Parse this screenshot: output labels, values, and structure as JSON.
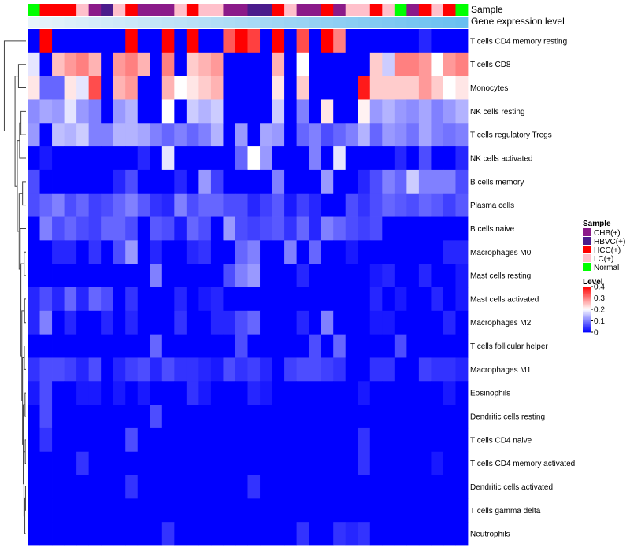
{
  "chart_data": {
    "type": "heatmap",
    "title": "",
    "annotation_labels": [
      "Sample",
      "Gene expression level"
    ],
    "row_labels": [
      "T cells CD4 memory resting",
      "T cells CD8",
      "Monocytes",
      "NK cells resting",
      "T cells regulatory  Tregs",
      "NK cells activated",
      "B cells memory",
      "Plasma cells",
      "B cells naive",
      "Macrophages M0",
      "Mast cells resting",
      "Mast cells activated",
      "Macrophages M2",
      "T cells follicular helper",
      "Macrophages M1",
      "Eosinophils",
      "Dendritic cells resting",
      "T cells CD4 naive",
      "T cells CD4 memory activated",
      "Dendritic cells activated",
      "T cells gamma delta",
      "Neutrophils"
    ],
    "sample_groups": [
      "Normal",
      "HCC(+)",
      "HCC(+)",
      "HCC(+)",
      "LC(+)",
      "CHB(+)",
      "HBVC(+)",
      "LC(+)",
      "HCC(+)",
      "CHB(+)",
      "CHB(+)",
      "CHB(+)",
      "LC(+)",
      "HCC(+)",
      "LC(+)",
      "LC(+)",
      "CHB(+)",
      "CHB(+)",
      "HBVC(+)",
      "HBVC(+)",
      "HCC(+)",
      "LC(+)",
      "CHB(+)",
      "CHB(+)",
      "HCC(+)",
      "CHB(+)",
      "LC(+)",
      "LC(+)",
      "HCC(+)",
      "LC(+)",
      "Normal",
      "CHB(+)",
      "HCC(+)",
      "LC(+)",
      "HCC(+)",
      "Normal"
    ],
    "expression_level_range": [
      0,
      1
    ],
    "legend_sample": {
      "title": "Sample",
      "entries": [
        {
          "name": "CHB(+)",
          "color": "#8B1A89"
        },
        {
          "name": "HBVC(+)",
          "color": "#4B1C8C"
        },
        {
          "name": "HCC(+)",
          "color": "#FF0000"
        },
        {
          "name": "LC(+)",
          "color": "#FFC0CB"
        },
        {
          "name": "Normal",
          "color": "#00FF00"
        }
      ]
    },
    "legend_level": {
      "title": "Level",
      "ticks": [
        0.4,
        0.3,
        0.2,
        0.1,
        0
      ],
      "range": [
        0,
        0.4
      ],
      "colors": [
        "#0000FF",
        "#FFFFFF",
        "#FF0000"
      ]
    },
    "values": [
      [
        0.0,
        0.4,
        0.0,
        0.0,
        0.0,
        0.0,
        0.0,
        0.0,
        0.4,
        0.0,
        0.0,
        0.4,
        0.0,
        0.4,
        0.0,
        0.0,
        0.33,
        0.4,
        0.35,
        0.0,
        0.4,
        0.0,
        0.34,
        0.0,
        0.4,
        0.3,
        0.0,
        0.0,
        0.0,
        0.0,
        0.0,
        0.0,
        0.03,
        0.0,
        0.0,
        0.0
      ],
      [
        0.18,
        0.0,
        0.25,
        0.28,
        0.3,
        0.26,
        0.0,
        0.28,
        0.3,
        0.26,
        0.0,
        0.3,
        0.0,
        0.24,
        0.26,
        0.28,
        0.0,
        0.0,
        0.0,
        0.0,
        0.26,
        0.0,
        0.2,
        0.0,
        0.0,
        0.0,
        0.0,
        0.0,
        0.24,
        0.16,
        0.3,
        0.3,
        0.28,
        0.2,
        0.28,
        0.3
      ],
      [
        0.22,
        0.08,
        0.08,
        0.22,
        0.18,
        0.34,
        0.0,
        0.26,
        0.28,
        0.0,
        0.0,
        0.26,
        0.2,
        0.22,
        0.24,
        0.26,
        0.0,
        0.0,
        0.0,
        0.0,
        0.22,
        0.0,
        0.24,
        0.0,
        0.0,
        0.0,
        0.0,
        0.38,
        0.24,
        0.24,
        0.24,
        0.24,
        0.28,
        0.24,
        0.2,
        0.22
      ],
      [
        0.11,
        0.13,
        0.12,
        0.18,
        0.12,
        0.1,
        0.0,
        0.12,
        0.14,
        0.0,
        0.0,
        0.2,
        0.0,
        0.16,
        0.14,
        0.16,
        0.0,
        0.0,
        0.0,
        0.0,
        0.16,
        0.0,
        0.1,
        0.0,
        0.22,
        0.0,
        0.0,
        0.21,
        0.12,
        0.14,
        0.12,
        0.11,
        0.13,
        0.1,
        0.12,
        0.14
      ],
      [
        0.12,
        0.0,
        0.15,
        0.14,
        0.16,
        0.1,
        0.1,
        0.14,
        0.14,
        0.13,
        0.1,
        0.08,
        0.1,
        0.08,
        0.1,
        0.14,
        0.0,
        0.12,
        0.0,
        0.13,
        0.12,
        0.0,
        0.08,
        0.1,
        0.06,
        0.08,
        0.1,
        0.14,
        0.08,
        0.12,
        0.11,
        0.09,
        0.13,
        0.1,
        0.09,
        0.1
      ],
      [
        0.0,
        0.02,
        0.0,
        0.0,
        0.0,
        0.0,
        0.0,
        0.0,
        0.0,
        0.03,
        0.0,
        0.18,
        0.0,
        0.0,
        0.0,
        0.0,
        0.0,
        0.08,
        0.2,
        0.12,
        0.0,
        0.0,
        0.0,
        0.1,
        0.0,
        0.18,
        0.0,
        0.0,
        0.0,
        0.0,
        0.03,
        0.0,
        0.06,
        0.0,
        0.0,
        0.03
      ],
      [
        0.06,
        0.0,
        0.0,
        0.0,
        0.0,
        0.0,
        0.0,
        0.03,
        0.06,
        0.0,
        0.0,
        0.0,
        0.03,
        0.0,
        0.12,
        0.05,
        0.0,
        0.0,
        0.0,
        0.0,
        0.1,
        0.0,
        0.0,
        0.0,
        0.12,
        0.0,
        0.0,
        0.03,
        0.06,
        0.1,
        0.08,
        0.16,
        0.1,
        0.1,
        0.1,
        0.06
      ],
      [
        0.06,
        0.08,
        0.1,
        0.06,
        0.08,
        0.05,
        0.06,
        0.08,
        0.1,
        0.07,
        0.04,
        0.03,
        0.1,
        0.06,
        0.08,
        0.08,
        0.06,
        0.06,
        0.03,
        0.05,
        0.07,
        0.02,
        0.05,
        0.03,
        0.0,
        0.0,
        0.06,
        0.04,
        0.06,
        0.08,
        0.07,
        0.06,
        0.08,
        0.07,
        0.05,
        0.07
      ],
      [
        0.0,
        0.1,
        0.06,
        0.08,
        0.06,
        0.05,
        0.08,
        0.08,
        0.06,
        0.0,
        0.07,
        0.06,
        0.02,
        0.08,
        0.06,
        0.0,
        0.12,
        0.06,
        0.05,
        0.06,
        0.07,
        0.04,
        0.08,
        0.03,
        0.1,
        0.08,
        0.06,
        0.05,
        0.06,
        0.0,
        0.0,
        0.0,
        0.0,
        0.0,
        0.0,
        0.0
      ],
      [
        0.0,
        0.0,
        0.03,
        0.03,
        0.0,
        0.04,
        0.0,
        0.06,
        0.12,
        0.0,
        0.03,
        0.0,
        0.0,
        0.03,
        0.04,
        0.0,
        0.0,
        0.08,
        0.1,
        0.0,
        0.0,
        0.1,
        0.0,
        0.08,
        0.0,
        0.0,
        0.02,
        0.0,
        0.0,
        0.0,
        0.0,
        0.0,
        0.0,
        0.0,
        0.03,
        0.03
      ],
      [
        0.0,
        0.0,
        0.0,
        0.0,
        0.0,
        0.0,
        0.0,
        0.0,
        0.0,
        0.0,
        0.1,
        0.0,
        0.0,
        0.0,
        0.0,
        0.0,
        0.06,
        0.1,
        0.12,
        0.0,
        0.0,
        0.0,
        0.03,
        0.0,
        0.0,
        0.0,
        0.0,
        0.0,
        0.02,
        0.03,
        0.0,
        0.0,
        0.03,
        0.0,
        0.0,
        0.02
      ],
      [
        0.03,
        0.06,
        0.03,
        0.08,
        0.03,
        0.08,
        0.06,
        0.0,
        0.04,
        0.0,
        0.0,
        0.0,
        0.03,
        0.0,
        0.02,
        0.03,
        0.0,
        0.0,
        0.0,
        0.0,
        0.0,
        0.0,
        0.0,
        0.0,
        0.0,
        0.0,
        0.0,
        0.0,
        0.03,
        0.0,
        0.02,
        0.0,
        0.0,
        0.03,
        0.0,
        0.02
      ],
      [
        0.03,
        0.1,
        0.0,
        0.03,
        0.0,
        0.0,
        0.03,
        0.0,
        0.03,
        0.0,
        0.0,
        0.0,
        0.04,
        0.0,
        0.0,
        0.03,
        0.03,
        0.06,
        0.08,
        0.0,
        0.0,
        0.0,
        0.03,
        0.0,
        0.1,
        0.0,
        0.0,
        0.0,
        0.02,
        0.02,
        0.0,
        0.0,
        0.0,
        0.0,
        0.03,
        0.0
      ],
      [
        0.0,
        0.0,
        0.0,
        0.0,
        0.0,
        0.0,
        0.0,
        0.0,
        0.0,
        0.0,
        0.08,
        0.0,
        0.0,
        0.0,
        0.0,
        0.0,
        0.0,
        0.06,
        0.0,
        0.0,
        0.0,
        0.0,
        0.0,
        0.06,
        0.0,
        0.08,
        0.0,
        0.0,
        0.0,
        0.0,
        0.06,
        0.0,
        0.0,
        0.0,
        0.0,
        0.0
      ],
      [
        0.04,
        0.06,
        0.06,
        0.05,
        0.03,
        0.06,
        0.0,
        0.03,
        0.05,
        0.06,
        0.03,
        0.06,
        0.04,
        0.04,
        0.03,
        0.02,
        0.06,
        0.04,
        0.05,
        0.03,
        0.0,
        0.05,
        0.06,
        0.06,
        0.05,
        0.04,
        0.0,
        0.0,
        0.04,
        0.04,
        0.0,
        0.0,
        0.05,
        0.04,
        0.04,
        0.03
      ],
      [
        0.02,
        0.06,
        0.0,
        0.0,
        0.02,
        0.02,
        0.0,
        0.02,
        0.0,
        0.02,
        0.0,
        0.0,
        0.0,
        0.04,
        0.02,
        0.0,
        0.0,
        0.0,
        0.03,
        0.02,
        0.0,
        0.0,
        0.0,
        0.0,
        0.0,
        0.0,
        0.0,
        0.02,
        0.0,
        0.0,
        0.0,
        0.0,
        0.0,
        0.0,
        0.02,
        0.0
      ],
      [
        0.0,
        0.06,
        0.0,
        0.0,
        0.0,
        0.0,
        0.0,
        0.0,
        0.0,
        0.0,
        0.06,
        0.0,
        0.0,
        0.0,
        0.0,
        0.0,
        0.0,
        0.0,
        0.0,
        0.0,
        0.0,
        0.0,
        0.0,
        0.0,
        0.0,
        0.0,
        0.0,
        0.0,
        0.0,
        0.0,
        0.0,
        0.0,
        0.0,
        0.0,
        0.0,
        0.0
      ],
      [
        0.0,
        0.04,
        0.0,
        0.0,
        0.0,
        0.0,
        0.0,
        0.0,
        0.06,
        0.0,
        0.0,
        0.0,
        0.0,
        0.0,
        0.0,
        0.0,
        0.0,
        0.0,
        0.0,
        0.0,
        0.0,
        0.0,
        0.0,
        0.0,
        0.0,
        0.0,
        0.0,
        0.04,
        0.0,
        0.0,
        0.0,
        0.0,
        0.0,
        0.0,
        0.0,
        0.0
      ],
      [
        0.0,
        0.0,
        0.0,
        0.0,
        0.04,
        0.0,
        0.0,
        0.0,
        0.0,
        0.0,
        0.0,
        0.0,
        0.0,
        0.0,
        0.0,
        0.0,
        0.0,
        0.0,
        0.0,
        0.0,
        0.0,
        0.0,
        0.0,
        0.0,
        0.0,
        0.0,
        0.0,
        0.04,
        0.0,
        0.0,
        0.0,
        0.0,
        0.0,
        0.02,
        0.0,
        0.0
      ],
      [
        0.0,
        0.0,
        0.0,
        0.0,
        0.0,
        0.0,
        0.0,
        0.0,
        0.04,
        0.0,
        0.0,
        0.0,
        0.0,
        0.0,
        0.0,
        0.0,
        0.0,
        0.0,
        0.04,
        0.0,
        0.0,
        0.0,
        0.0,
        0.0,
        0.0,
        0.0,
        0.0,
        0.0,
        0.0,
        0.0,
        0.0,
        0.0,
        0.0,
        0.0,
        0.0,
        0.0
      ],
      [
        0.0,
        0.0,
        0.0,
        0.0,
        0.0,
        0.0,
        0.0,
        0.0,
        0.0,
        0.0,
        0.0,
        0.0,
        0.0,
        0.0,
        0.0,
        0.0,
        0.0,
        0.0,
        0.0,
        0.0,
        0.0,
        0.0,
        0.0,
        0.0,
        0.0,
        0.0,
        0.0,
        0.0,
        0.0,
        0.0,
        0.0,
        0.0,
        0.0,
        0.0,
        0.0,
        0.0
      ],
      [
        0.0,
        0.0,
        0.0,
        0.0,
        0.0,
        0.0,
        0.0,
        0.0,
        0.0,
        0.0,
        0.0,
        0.04,
        0.0,
        0.0,
        0.0,
        0.0,
        0.0,
        0.0,
        0.0,
        0.0,
        0.0,
        0.0,
        0.04,
        0.0,
        0.0,
        0.04,
        0.03,
        0.04,
        0.0,
        0.0,
        0.0,
        0.0,
        0.0,
        0.0,
        0.0,
        0.0
      ]
    ]
  }
}
